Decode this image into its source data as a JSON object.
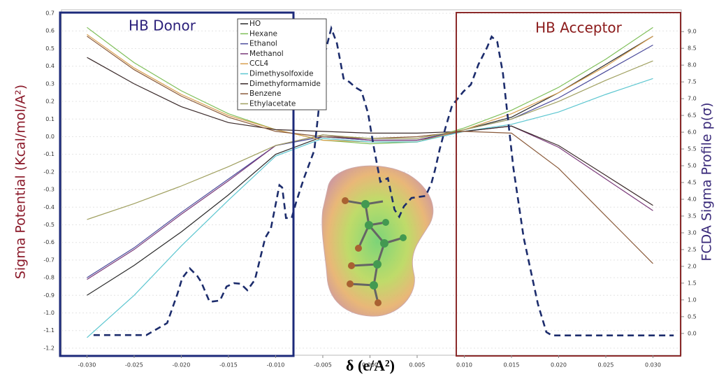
{
  "chart_data": {
    "type": "line",
    "xlabel": "δ (e/A²)",
    "ylabel": "Sigma Potential (Kcal/mol/A²)",
    "y2label": "FCDA Sigma Profile p(σ)",
    "annotations": [
      "HB Donor",
      "HB Acceptor"
    ],
    "xlim": [
      -0.0327,
      0.033
    ],
    "ylim": [
      -1.24,
      0.72
    ],
    "y2lim": [
      -0.65,
      9.65
    ],
    "grid": true,
    "xticks": [
      {
        "value": -0.03,
        "label": "-0.030"
      },
      {
        "value": -0.025,
        "label": "-0.025"
      },
      {
        "value": -0.02,
        "label": "-0.020"
      },
      {
        "value": -0.015,
        "label": "-0.015"
      },
      {
        "value": -0.01,
        "label": "-0.010"
      },
      {
        "value": -0.005,
        "label": "-0.005"
      },
      {
        "value": 0,
        "label": "0.000"
      },
      {
        "value": 0.005,
        "label": "0.005"
      },
      {
        "value": 0.01,
        "label": "0.010"
      },
      {
        "value": 0.015,
        "label": "0.015"
      },
      {
        "value": 0.02,
        "label": "0.020"
      },
      {
        "value": 0.025,
        "label": "0.025"
      },
      {
        "value": 0.03,
        "label": "0.030"
      }
    ],
    "yticks": [
      0.7,
      0.6,
      0.5,
      0.4,
      0.3,
      0.2,
      0.1,
      {
        "value": 0,
        "label": "0.0"
      },
      -0.1,
      -0.2,
      -0.3,
      -0.4,
      -0.5,
      -0.6,
      -0.7,
      -0.8,
      -0.9,
      {
        "value": -1,
        "label": "-1.0"
      },
      -1.1,
      -1.2
    ],
    "y2ticks": [
      {
        "value": 0,
        "label": "0.0"
      },
      0.5,
      {
        "value": 1,
        "label": "1.0"
      },
      1.5,
      {
        "value": 2,
        "label": "2.0"
      },
      2.5,
      {
        "value": 3,
        "label": "3.0"
      },
      3.5,
      {
        "value": 4,
        "label": "4.0"
      },
      4.5,
      {
        "value": 5,
        "label": "5.0"
      },
      5.5,
      {
        "value": 6,
        "label": "6.0"
      },
      6.5,
      {
        "value": 7,
        "label": "7.0"
      },
      7.5,
      {
        "value": 8,
        "label": "8.0"
      },
      8.5,
      {
        "value": 9,
        "label": "9.0"
      }
    ],
    "x": [
      -0.03,
      -0.025,
      -0.02,
      -0.015,
      -0.01,
      -0.005,
      0,
      0.005,
      0.01,
      0.015,
      0.02,
      0.025,
      0.03
    ],
    "series": [
      {
        "name": "HO",
        "color": "#2a2a2a",
        "values": [
          -0.9,
          -0.73,
          -0.54,
          -0.33,
          -0.1,
          0.0,
          -0.02,
          -0.02,
          0.04,
          0.11,
          0.25,
          0.41,
          0.57
        ]
      },
      {
        "name": "Hexane",
        "color": "#7fbf5a",
        "values": [
          0.62,
          0.42,
          0.26,
          0.13,
          0.04,
          -0.02,
          -0.04,
          -0.03,
          0.05,
          0.15,
          0.28,
          0.44,
          0.62
        ]
      },
      {
        "name": "Ethanol",
        "color": "#4a4a9a",
        "values": [
          -0.8,
          -0.63,
          -0.43,
          -0.24,
          -0.05,
          0.0,
          -0.02,
          -0.02,
          0.04,
          0.1,
          0.22,
          0.37,
          0.52
        ]
      },
      {
        "name": "Methanol",
        "color": "#7a3a7a",
        "values": [
          -0.81,
          -0.64,
          -0.44,
          -0.25,
          -0.05,
          0.01,
          -0.02,
          -0.02,
          0.03,
          0.06,
          -0.06,
          -0.24,
          -0.42
        ]
      },
      {
        "name": "CCL4",
        "color": "#d9a050",
        "values": [
          0.58,
          0.39,
          0.24,
          0.12,
          0.04,
          -0.02,
          -0.03,
          -0.03,
          0.04,
          0.13,
          0.25,
          0.4,
          0.57
        ]
      },
      {
        "name": "Dimethysolfoxide",
        "color": "#5cc6d0",
        "values": [
          -1.14,
          -0.9,
          -0.62,
          -0.36,
          -0.11,
          -0.01,
          -0.03,
          -0.03,
          0.03,
          0.07,
          0.14,
          0.24,
          0.33
        ]
      },
      {
        "name": "Dimethyformamide",
        "color": "#3a2a2a",
        "values": [
          0.45,
          0.3,
          0.17,
          0.08,
          0.04,
          0.03,
          0.02,
          0.02,
          0.03,
          0.06,
          -0.05,
          -0.22,
          -0.39
        ]
      },
      {
        "name": "Benzene",
        "color": "#8a5a3a",
        "values": [
          0.57,
          0.38,
          0.23,
          0.11,
          0.03,
          0.0,
          -0.01,
          0.0,
          0.03,
          0.02,
          -0.18,
          -0.45,
          -0.72
        ]
      },
      {
        "name": "Ethylacetate",
        "color": "#a0a060",
        "values": [
          -0.47,
          -0.38,
          -0.28,
          -0.17,
          -0.05,
          0.01,
          -0.01,
          -0.01,
          0.04,
          0.1,
          0.2,
          0.32,
          0.43
        ]
      },
      {
        "axis": "y2",
        "color": "#1c2c6c",
        "dashed": true,
        "x": [
          -0.0293,
          -0.0237,
          -0.0215,
          -0.0204,
          -0.0199,
          -0.0191,
          -0.0183,
          -0.0179,
          -0.017,
          -0.0159,
          -0.0152,
          -0.0144,
          -0.0137,
          -0.013,
          -0.0122,
          -0.0111,
          -0.0105,
          -0.0096,
          -0.0093,
          -0.0089,
          -0.0083,
          -0.0078,
          -0.007,
          -0.0059,
          -0.0048,
          -0.0041,
          -0.0035,
          -0.0028,
          -0.0022,
          -0.0015,
          -0.0009,
          -0.0002,
          0.0004,
          0.0011,
          0.0019,
          0.0026,
          0.0031,
          0.0036,
          0.0044,
          0.0059,
          0.0065,
          0.0069,
          0.0074,
          0.008,
          0.0087,
          0.0099,
          0.0107,
          0.0115,
          0.0124,
          0.0129,
          0.0135,
          0.0141,
          0.0152,
          0.0163,
          0.0178,
          0.0187,
          0.0193,
          0.0322
        ],
        "values": [
          -0.05,
          -0.05,
          0.31,
          1.19,
          1.65,
          1.94,
          1.71,
          1.54,
          0.94,
          0.98,
          1.4,
          1.5,
          1.48,
          1.29,
          1.6,
          2.85,
          3.13,
          4.42,
          4.35,
          3.44,
          3.44,
          3.94,
          4.63,
          5.46,
          8.33,
          9.1,
          8.65,
          7.6,
          7.5,
          7.33,
          7.23,
          6.56,
          5.56,
          4.52,
          4.63,
          3.69,
          3.48,
          3.79,
          4.04,
          4.1,
          4.46,
          4.88,
          5.5,
          6.13,
          6.79,
          7.21,
          7.42,
          8.02,
          8.52,
          8.85,
          8.69,
          7.75,
          4.94,
          2.85,
          0.88,
          0.04,
          -0.06,
          -0.06
        ]
      }
    ]
  }
}
